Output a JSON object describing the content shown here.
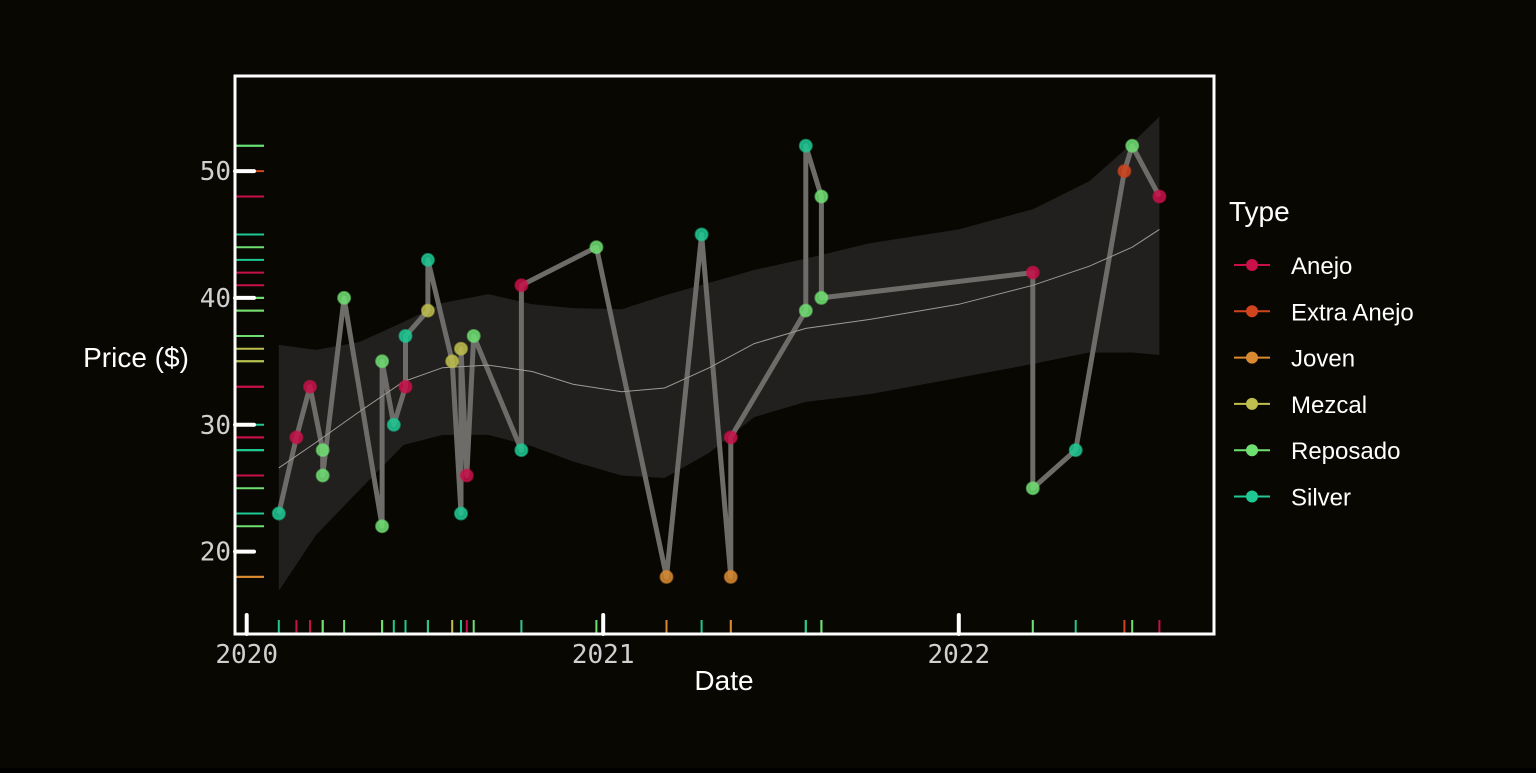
{
  "chart_data": {
    "type": "line",
    "xlabel": "Date",
    "ylabel": "Price ($)",
    "x_ticks": [
      {
        "date": "2020-01-01",
        "label": "2020"
      },
      {
        "date": "2021-01-01",
        "label": "2021"
      },
      {
        "date": "2022-01-01",
        "label": "2022"
      }
    ],
    "y_ticks": [
      20,
      30,
      40,
      50
    ],
    "xlim": [
      "2019-12-20",
      "2022-09-20"
    ],
    "ylim": [
      13.5,
      57.5
    ],
    "grid": false,
    "legend_position": "right",
    "legend_title": "Type",
    "types": [
      {
        "name": "Anejo",
        "color": "#c8104a"
      },
      {
        "name": "Extra Anejo",
        "color": "#d0441e"
      },
      {
        "name": "Joven",
        "color": "#d98a30"
      },
      {
        "name": "Mezcal",
        "color": "#bfbf4e"
      },
      {
        "name": "Reposado",
        "color": "#6fdf72"
      },
      {
        "name": "Silver",
        "color": "#1ec994"
      }
    ],
    "points": [
      {
        "date": "2020-02-03",
        "price": 23,
        "type": "Silver"
      },
      {
        "date": "2020-02-21",
        "price": 29,
        "type": "Anejo"
      },
      {
        "date": "2020-03-06",
        "price": 33,
        "type": "Anejo"
      },
      {
        "date": "2020-03-19",
        "price": 28,
        "type": "Reposado"
      },
      {
        "date": "2020-03-19",
        "price": 26,
        "type": "Reposado"
      },
      {
        "date": "2020-04-10",
        "price": 40,
        "type": "Reposado"
      },
      {
        "date": "2020-05-19",
        "price": 35,
        "type": "Reposado"
      },
      {
        "date": "2020-05-19",
        "price": 22,
        "type": "Reposado"
      },
      {
        "date": "2020-05-31",
        "price": 30,
        "type": "Silver"
      },
      {
        "date": "2020-06-12",
        "price": 33,
        "type": "Anejo"
      },
      {
        "date": "2020-06-12",
        "price": 37,
        "type": "Silver"
      },
      {
        "date": "2020-07-05",
        "price": 39,
        "type": "Mezcal"
      },
      {
        "date": "2020-07-05",
        "price": 43,
        "type": "Silver"
      },
      {
        "date": "2020-07-30",
        "price": 35,
        "type": "Mezcal"
      },
      {
        "date": "2020-08-08",
        "price": 36,
        "type": "Mezcal"
      },
      {
        "date": "2020-08-08",
        "price": 23,
        "type": "Silver"
      },
      {
        "date": "2020-08-14",
        "price": 26,
        "type": "Anejo"
      },
      {
        "date": "2020-08-21",
        "price": 37,
        "type": "Reposado"
      },
      {
        "date": "2020-10-09",
        "price": 41,
        "type": "Anejo"
      },
      {
        "date": "2020-10-09",
        "price": 28,
        "type": "Silver"
      },
      {
        "date": "2020-12-25",
        "price": 44,
        "type": "Reposado"
      },
      {
        "date": "2021-03-07",
        "price": 18,
        "type": "Joven"
      },
      {
        "date": "2021-04-12",
        "price": 45,
        "type": "Silver"
      },
      {
        "date": "2021-05-12",
        "price": 29,
        "type": "Anejo"
      },
      {
        "date": "2021-05-12",
        "price": 18,
        "type": "Joven"
      },
      {
        "date": "2021-07-28",
        "price": 39,
        "type": "Reposado"
      },
      {
        "date": "2021-07-28",
        "price": 52,
        "type": "Silver"
      },
      {
        "date": "2021-08-13",
        "price": 40,
        "type": "Reposado"
      },
      {
        "date": "2021-08-13",
        "price": 48,
        "type": "Reposado"
      },
      {
        "date": "2022-03-18",
        "price": 42,
        "type": "Anejo"
      },
      {
        "date": "2022-03-18",
        "price": 25,
        "type": "Reposado"
      },
      {
        "date": "2022-05-01",
        "price": 28,
        "type": "Silver"
      },
      {
        "date": "2022-06-20",
        "price": 50,
        "type": "Extra Anejo"
      },
      {
        "date": "2022-06-28",
        "price": 52,
        "type": "Reposado"
      },
      {
        "date": "2022-07-26",
        "price": 48,
        "type": "Anejo"
      }
    ],
    "path_order": [
      0,
      1,
      2,
      3,
      4,
      5,
      7,
      6,
      8,
      9,
      10,
      11,
      12,
      13,
      15,
      14,
      16,
      17,
      19,
      18,
      20,
      21,
      22,
      24,
      23,
      25,
      26,
      28,
      27,
      29,
      30,
      31,
      32,
      33,
      34
    ],
    "trend_line": [
      {
        "date": "2020-02-03",
        "fit": 26.6,
        "lower": 16.9,
        "upper": 36.3
      },
      {
        "date": "2020-03-12",
        "fit": 28.6,
        "lower": 21.3,
        "upper": 35.9
      },
      {
        "date": "2020-04-25",
        "fit": 31.0,
        "lower": 24.8,
        "upper": 36.5
      },
      {
        "date": "2020-06-10",
        "fit": 33.4,
        "lower": 28.4,
        "upper": 38.1
      },
      {
        "date": "2020-07-20",
        "fit": 34.5,
        "lower": 29.2,
        "upper": 39.6
      },
      {
        "date": "2020-09-05",
        "fit": 34.7,
        "lower": 29.2,
        "upper": 40.3
      },
      {
        "date": "2020-10-20",
        "fit": 34.2,
        "lower": 28.3,
        "upper": 39.5
      },
      {
        "date": "2020-12-01",
        "fit": 33.2,
        "lower": 27.1,
        "upper": 39.2
      },
      {
        "date": "2021-01-20",
        "fit": 32.6,
        "lower": 26.0,
        "upper": 39.1
      },
      {
        "date": "2021-03-05",
        "fit": 32.9,
        "lower": 25.8,
        "upper": 40.2
      },
      {
        "date": "2021-04-20",
        "fit": 34.5,
        "lower": 27.8,
        "upper": 41.2
      },
      {
        "date": "2021-06-05",
        "fit": 36.4,
        "lower": 30.6,
        "upper": 42.2
      },
      {
        "date": "2021-07-28",
        "fit": 37.6,
        "lower": 31.8,
        "upper": 43.1
      },
      {
        "date": "2021-10-01",
        "fit": 38.3,
        "lower": 32.4,
        "upper": 44.3
      },
      {
        "date": "2022-01-01",
        "fit": 39.5,
        "lower": 33.7,
        "upper": 45.4
      },
      {
        "date": "2022-03-18",
        "fit": 41.0,
        "lower": 34.8,
        "upper": 47.0
      },
      {
        "date": "2022-05-15",
        "fit": 42.5,
        "lower": 35.7,
        "upper": 49.2
      },
      {
        "date": "2022-06-28",
        "fit": 44.0,
        "lower": 35.7,
        "upper": 52.2
      },
      {
        "date": "2022-07-26",
        "fit": 45.4,
        "lower": 35.5,
        "upper": 54.3
      }
    ]
  }
}
